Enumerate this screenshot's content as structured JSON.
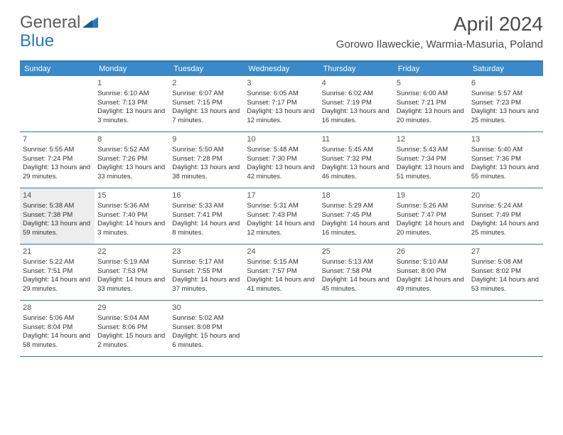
{
  "logo": {
    "text1": "General",
    "text2": "Blue"
  },
  "colors": {
    "accent": "#2a7ab8",
    "header_bg": "#3a8ac9",
    "text": "#4a4a4a",
    "today_bg": "#ededed"
  },
  "title": "April 2024",
  "location": "Gorowo Ilaweckie, Warmia-Masuria, Poland",
  "weekdays": [
    "Sunday",
    "Monday",
    "Tuesday",
    "Wednesday",
    "Thursday",
    "Friday",
    "Saturday"
  ],
  "weeks": [
    [
      {
        "num": "",
        "lines": []
      },
      {
        "num": "1",
        "lines": [
          "Sunrise: 6:10 AM",
          "Sunset: 7:13 PM",
          "Daylight: 13 hours and 3 minutes."
        ]
      },
      {
        "num": "2",
        "lines": [
          "Sunrise: 6:07 AM",
          "Sunset: 7:15 PM",
          "Daylight: 13 hours and 7 minutes."
        ]
      },
      {
        "num": "3",
        "lines": [
          "Sunrise: 6:05 AM",
          "Sunset: 7:17 PM",
          "Daylight: 13 hours and 12 minutes."
        ]
      },
      {
        "num": "4",
        "lines": [
          "Sunrise: 6:02 AM",
          "Sunset: 7:19 PM",
          "Daylight: 13 hours and 16 minutes."
        ]
      },
      {
        "num": "5",
        "lines": [
          "Sunrise: 6:00 AM",
          "Sunset: 7:21 PM",
          "Daylight: 13 hours and 20 minutes."
        ]
      },
      {
        "num": "6",
        "lines": [
          "Sunrise: 5:57 AM",
          "Sunset: 7:23 PM",
          "Daylight: 13 hours and 25 minutes."
        ]
      }
    ],
    [
      {
        "num": "7",
        "lines": [
          "Sunrise: 5:55 AM",
          "Sunset: 7:24 PM",
          "Daylight: 13 hours and 29 minutes."
        ]
      },
      {
        "num": "8",
        "lines": [
          "Sunrise: 5:52 AM",
          "Sunset: 7:26 PM",
          "Daylight: 13 hours and 33 minutes."
        ]
      },
      {
        "num": "9",
        "lines": [
          "Sunrise: 5:50 AM",
          "Sunset: 7:28 PM",
          "Daylight: 13 hours and 38 minutes."
        ]
      },
      {
        "num": "10",
        "lines": [
          "Sunrise: 5:48 AM",
          "Sunset: 7:30 PM",
          "Daylight: 13 hours and 42 minutes."
        ]
      },
      {
        "num": "11",
        "lines": [
          "Sunrise: 5:45 AM",
          "Sunset: 7:32 PM",
          "Daylight: 13 hours and 46 minutes."
        ]
      },
      {
        "num": "12",
        "lines": [
          "Sunrise: 5:43 AM",
          "Sunset: 7:34 PM",
          "Daylight: 13 hours and 51 minutes."
        ]
      },
      {
        "num": "13",
        "lines": [
          "Sunrise: 5:40 AM",
          "Sunset: 7:36 PM",
          "Daylight: 13 hours and 55 minutes."
        ]
      }
    ],
    [
      {
        "num": "14",
        "today": true,
        "lines": [
          "Sunrise: 5:38 AM",
          "Sunset: 7:38 PM",
          "Daylight: 13 hours and 59 minutes."
        ]
      },
      {
        "num": "15",
        "lines": [
          "Sunrise: 5:36 AM",
          "Sunset: 7:40 PM",
          "Daylight: 14 hours and 3 minutes."
        ]
      },
      {
        "num": "16",
        "lines": [
          "Sunrise: 5:33 AM",
          "Sunset: 7:41 PM",
          "Daylight: 14 hours and 8 minutes."
        ]
      },
      {
        "num": "17",
        "lines": [
          "Sunrise: 5:31 AM",
          "Sunset: 7:43 PM",
          "Daylight: 14 hours and 12 minutes."
        ]
      },
      {
        "num": "18",
        "lines": [
          "Sunrise: 5:29 AM",
          "Sunset: 7:45 PM",
          "Daylight: 14 hours and 16 minutes."
        ]
      },
      {
        "num": "19",
        "lines": [
          "Sunrise: 5:26 AM",
          "Sunset: 7:47 PM",
          "Daylight: 14 hours and 20 minutes."
        ]
      },
      {
        "num": "20",
        "lines": [
          "Sunrise: 5:24 AM",
          "Sunset: 7:49 PM",
          "Daylight: 14 hours and 25 minutes."
        ]
      }
    ],
    [
      {
        "num": "21",
        "lines": [
          "Sunrise: 5:22 AM",
          "Sunset: 7:51 PM",
          "Daylight: 14 hours and 29 minutes."
        ]
      },
      {
        "num": "22",
        "lines": [
          "Sunrise: 5:19 AM",
          "Sunset: 7:53 PM",
          "Daylight: 14 hours and 33 minutes."
        ]
      },
      {
        "num": "23",
        "lines": [
          "Sunrise: 5:17 AM",
          "Sunset: 7:55 PM",
          "Daylight: 14 hours and 37 minutes."
        ]
      },
      {
        "num": "24",
        "lines": [
          "Sunrise: 5:15 AM",
          "Sunset: 7:57 PM",
          "Daylight: 14 hours and 41 minutes."
        ]
      },
      {
        "num": "25",
        "lines": [
          "Sunrise: 5:13 AM",
          "Sunset: 7:58 PM",
          "Daylight: 14 hours and 45 minutes."
        ]
      },
      {
        "num": "26",
        "lines": [
          "Sunrise: 5:10 AM",
          "Sunset: 8:00 PM",
          "Daylight: 14 hours and 49 minutes."
        ]
      },
      {
        "num": "27",
        "lines": [
          "Sunrise: 5:08 AM",
          "Sunset: 8:02 PM",
          "Daylight: 14 hours and 53 minutes."
        ]
      }
    ],
    [
      {
        "num": "28",
        "lines": [
          "Sunrise: 5:06 AM",
          "Sunset: 8:04 PM",
          "Daylight: 14 hours and 58 minutes."
        ]
      },
      {
        "num": "29",
        "lines": [
          "Sunrise: 5:04 AM",
          "Sunset: 8:06 PM",
          "Daylight: 15 hours and 2 minutes."
        ]
      },
      {
        "num": "30",
        "lines": [
          "Sunrise: 5:02 AM",
          "Sunset: 8:08 PM",
          "Daylight: 15 hours and 6 minutes."
        ]
      },
      {
        "num": "",
        "lines": []
      },
      {
        "num": "",
        "lines": []
      },
      {
        "num": "",
        "lines": []
      },
      {
        "num": "",
        "lines": []
      }
    ]
  ]
}
